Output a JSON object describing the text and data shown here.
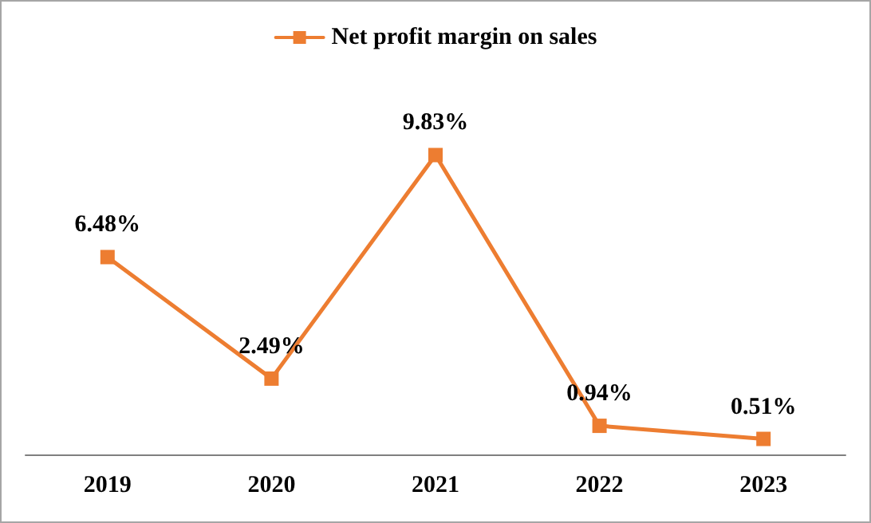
{
  "chart_data": {
    "type": "line",
    "categories": [
      "2019",
      "2020",
      "2021",
      "2022",
      "2023"
    ],
    "series": [
      {
        "name": "Net profit margin on sales",
        "color": "#ed7d31",
        "values": [
          6.48,
          2.49,
          9.83,
          0.94,
          0.51
        ],
        "value_labels": [
          "6.48%",
          "2.49%",
          "9.83%",
          "0.94%",
          "0.51%"
        ]
      }
    ],
    "legend": "top",
    "marker": "square",
    "line_style": "solid",
    "grid": false,
    "tick_labels": "x"
  }
}
